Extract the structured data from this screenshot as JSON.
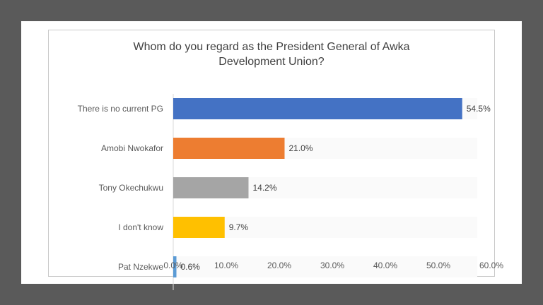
{
  "chart_data": {
    "type": "bar",
    "orientation": "horizontal",
    "title_lines": [
      "Whom do you regard as the President General of Awka",
      "Development Union?"
    ],
    "categories": [
      "There is no current PG",
      "Amobi Nwokafor",
      "Tony Okechukwu",
      "I don't know",
      "Pat Nzekwe"
    ],
    "values": [
      54.5,
      21.0,
      14.2,
      9.7,
      0.6
    ],
    "data_labels": [
      "54.5%",
      "21.0%",
      "14.2%",
      "9.7%",
      "0.6%"
    ],
    "bar_colors": [
      "#4472c4",
      "#ed7d31",
      "#a5a5a5",
      "#ffc000",
      "#5b9bd5"
    ],
    "xlim": [
      0,
      60
    ],
    "x_ticks": [
      0,
      10,
      20,
      30,
      40,
      50,
      60
    ],
    "x_tick_labels": [
      "0.0%",
      "10.0%",
      "20.0%",
      "30.0%",
      "40.0%",
      "50.0%",
      "60.0%"
    ],
    "grid": false,
    "legend": "none"
  }
}
